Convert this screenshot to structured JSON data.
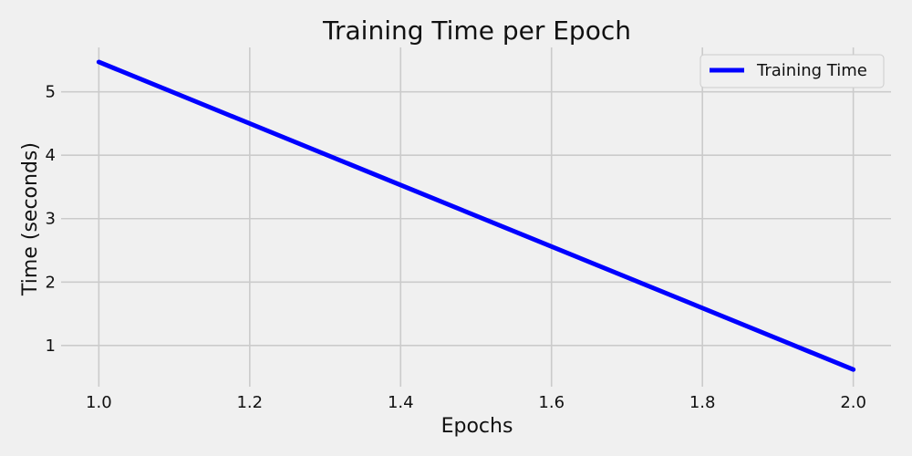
{
  "chart_data": {
    "type": "line",
    "title": "Training Time per Epoch",
    "xlabel": "Epochs",
    "ylabel": "Time (seconds)",
    "xlim": [
      0.95,
      2.05
    ],
    "ylim": [
      0.35,
      5.7
    ],
    "xticks": [
      1.0,
      1.2,
      1.4,
      1.6,
      1.8,
      2.0
    ],
    "xtick_labels": [
      "1.0",
      "1.2",
      "1.4",
      "1.6",
      "1.8",
      "2.0"
    ],
    "yticks": [
      1,
      2,
      3,
      4,
      5
    ],
    "ytick_labels": [
      "1",
      "2",
      "3",
      "4",
      "5"
    ],
    "grid": true,
    "legend_position": "top-right",
    "series": [
      {
        "name": "Training Time",
        "color": "#0000ff",
        "x": [
          1,
          2
        ],
        "y": [
          5.47,
          0.62
        ]
      }
    ]
  }
}
